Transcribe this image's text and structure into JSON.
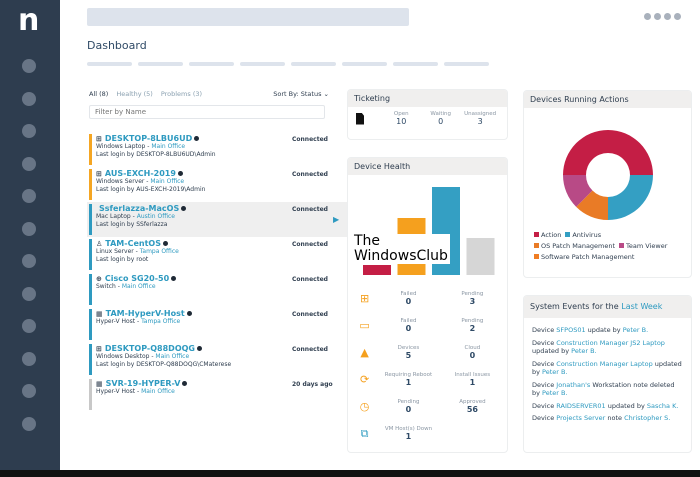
{
  "app": {
    "logo": "n",
    "page_title": "Dashboard"
  },
  "filters": {
    "all": "All (8)",
    "healthy": "Healthy (5)",
    "problems": "Problems (3)",
    "sort": "Sort By: Status ⌄",
    "placeholder": "Filter by Name"
  },
  "devices": [
    {
      "icon": "windows-icon",
      "name": "DESKTOP-8LBU6UD",
      "type": "Windows Laptop",
      "location": "Main Office",
      "login": "Last login by DESKTOP-8LBU6UD\\Admin",
      "status": "Connected",
      "color": "#f5a623"
    },
    {
      "icon": "windows-icon",
      "name": "AUS-EXCH-2019",
      "type": "Windows Server",
      "location": "Main Office",
      "login": "Last login by AUS-EXCH-2019\\Admin",
      "status": "Connected",
      "color": "#f5a623"
    },
    {
      "icon": "apple-icon",
      "name": "Ssferlazza-MacOS",
      "type": "Mac Laptop",
      "location": "Austin Office",
      "login": "Last login by SSferlazza",
      "status": "Connected",
      "color": "#2e9ac0"
    },
    {
      "icon": "linux-icon",
      "name": "TAM-CentOS",
      "type": "Linux Server",
      "location": "Tampa Office",
      "login": "Last login by root",
      "status": "Connected",
      "color": "#2e9ac0"
    },
    {
      "icon": "network-icon",
      "name": "Cisco SG20-50",
      "type": "Switch",
      "location": "Main Office",
      "login": "",
      "status": "Connected",
      "color": "#2e9ac0"
    },
    {
      "icon": "hyperv-icon",
      "name": "TAM-HyperV-Host",
      "type": "Hyper-V Host",
      "location": "Tampa Office",
      "login": "",
      "status": "Connected",
      "color": "#2e9ac0"
    },
    {
      "icon": "windows-icon",
      "name": "DESKTOP-Q88DOQG",
      "type": "Windows Desktop",
      "location": "Main Office",
      "login": "Last login by DESKTOP-Q88DOQG\\CMaterese",
      "status": "Connected",
      "color": "#2e9ac0"
    },
    {
      "icon": "hyperv-icon",
      "name": "SVR-19-HYPER-V",
      "type": "Hyper-V Host",
      "location": "Main Office",
      "login": "",
      "status": "20 days ago",
      "color": "#c8c8c8"
    }
  ],
  "ticketing": {
    "title": "Ticketing",
    "open_label": "Open",
    "open": "10",
    "waiting_label": "Waiting",
    "waiting": "0",
    "unassigned_label": "Unassigned",
    "unassigned": "3"
  },
  "device_health": {
    "title": "Device Health",
    "bars": [
      {
        "value": 10,
        "color": "#c41e45"
      },
      {
        "value": 57,
        "color": "#f5a01e"
      },
      {
        "value": 88,
        "color": "#349fc3"
      },
      {
        "value": 37,
        "color": "#d6d6d6"
      }
    ],
    "rows": [
      {
        "icon": "windows-icon",
        "color": "#f5a01e",
        "a_label": "Failed",
        "a": "0",
        "b_label": "Pending",
        "b": "3"
      },
      {
        "icon": "window-icon",
        "color": "#f5a01e",
        "a_label": "Failed",
        "a": "0",
        "b_label": "Pending",
        "b": "2"
      },
      {
        "icon": "warning-icon",
        "color": "#f5a01e",
        "a_label": "Devices",
        "a": "5",
        "b_label": "Cloud",
        "b": "0"
      },
      {
        "icon": "refresh-icon",
        "color": "#f5a01e",
        "a_label": "Requiring Reboot",
        "a": "1",
        "b_label": "Install Issues",
        "b": "1"
      },
      {
        "icon": "clock-icon",
        "color": "#f5a01e",
        "a_label": "Pending",
        "a": "0",
        "b_label": "Approved",
        "b": "56"
      },
      {
        "icon": "vm-icon",
        "color": "#349fc3",
        "a_label": "VM Host(s) Down",
        "a": "1",
        "b_label": "",
        "b": ""
      }
    ]
  },
  "running_actions": {
    "title": "Devices Running Actions",
    "slices": [
      {
        "name": "Action",
        "value": 50,
        "color": "#c41e45"
      },
      {
        "name": "Antivirus",
        "value": 25,
        "color": "#349fc3"
      },
      {
        "name": "OS Patch Management",
        "value": 12.5,
        "color": "#e97b26"
      },
      {
        "name": "Team Viewer",
        "value": 12.5,
        "color": "#b84a86"
      },
      {
        "name": "Software Patch Management",
        "value": 0,
        "color": "#f07d23"
      }
    ]
  },
  "events": {
    "title": "System Events for the",
    "title_link": "Last Week",
    "items": [
      [
        [
          "Device ",
          0
        ],
        [
          "SFPOS01",
          1
        ],
        [
          " update by ",
          0
        ],
        [
          "Peter B.",
          1
        ]
      ],
      [
        [
          "Device ",
          0
        ],
        [
          "Construction Manager JS2 Laptop",
          1
        ],
        [
          " updated by ",
          0
        ],
        [
          "Peter B.",
          1
        ]
      ],
      [
        [
          "Device ",
          0
        ],
        [
          "Construction Manager Laptop",
          1
        ],
        [
          " updated by ",
          0
        ],
        [
          "Peter B.",
          1
        ]
      ],
      [
        [
          "Device ",
          0
        ],
        [
          "Jonathan's",
          1
        ],
        [
          " Workstation note deleted by ",
          0
        ],
        [
          "Peter B.",
          1
        ]
      ],
      [
        [
          "Device ",
          0
        ],
        [
          "RAIDSERVER01",
          1
        ],
        [
          " updated by ",
          0
        ],
        [
          "Sascha K.",
          1
        ]
      ],
      [
        [
          "Device ",
          0
        ],
        [
          "Projects Server",
          1
        ],
        [
          " note ",
          0
        ],
        [
          "Christopher S.",
          1
        ]
      ]
    ]
  },
  "watermark": "The\nWindowsClub"
}
